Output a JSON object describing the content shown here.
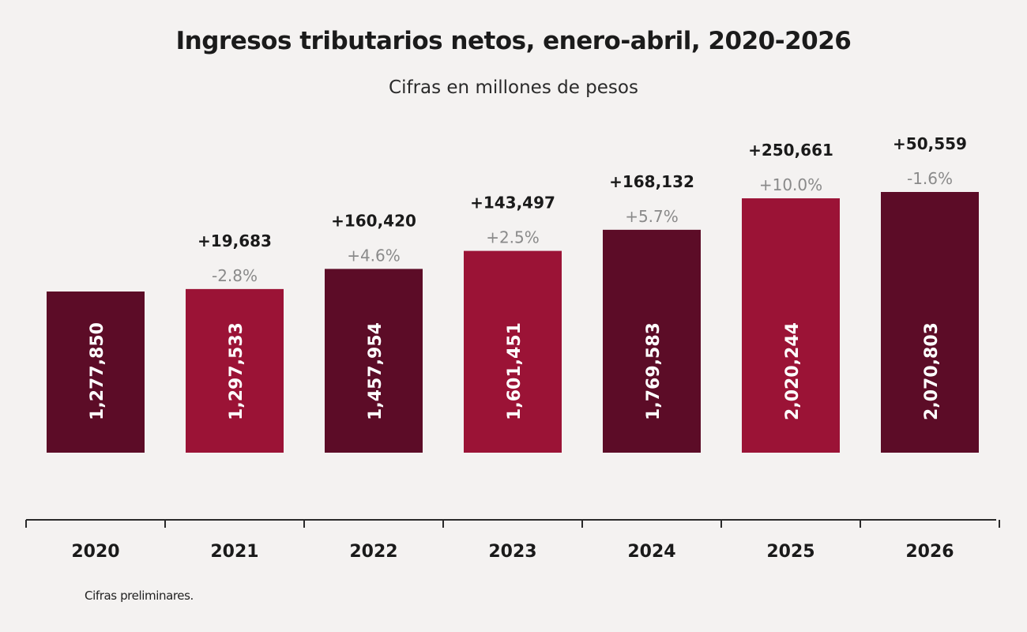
{
  "chart_data": {
    "type": "bar",
    "title": "Ingresos tributarios netos, enero-abril, 2020-2026",
    "subtitle": "Cifras en millones de pesos",
    "categories": [
      "2020",
      "2021",
      "2022",
      "2023",
      "2024",
      "2025",
      "2026"
    ],
    "values": [
      1277850,
      1297533,
      1457954,
      1601451,
      1769583,
      2020244,
      2070803
    ],
    "value_labels": [
      "1,277,850",
      "1,297,533",
      "1,457,954",
      "1,601,451",
      "1,769,583",
      "2,020,244",
      "2,070,803"
    ],
    "change_labels": [
      "",
      "+19,683",
      "+160,420",
      "+143,497",
      "+168,132",
      "+250,661",
      "+50,559"
    ],
    "pct_labels": [
      "",
      "-2.8%",
      "+4.6%",
      "+2.5%",
      "+5.7%",
      "+10.0%",
      "-1.6%"
    ],
    "bar_colors": [
      "#5c0c27",
      "#9b1336",
      "#5c0c27",
      "#9b1336",
      "#5c0c27",
      "#9b1336",
      "#5c0c27"
    ],
    "grid": false
  },
  "footnote": "Cifras preliminares.",
  "colors": {
    "dark_bar": "#5c0c27",
    "light_bar": "#9b1336",
    "change_text": "#1a1a1a",
    "pct_text": "#8a8a8a",
    "value_text": "#ffffff",
    "background": "#f4f2f1"
  }
}
